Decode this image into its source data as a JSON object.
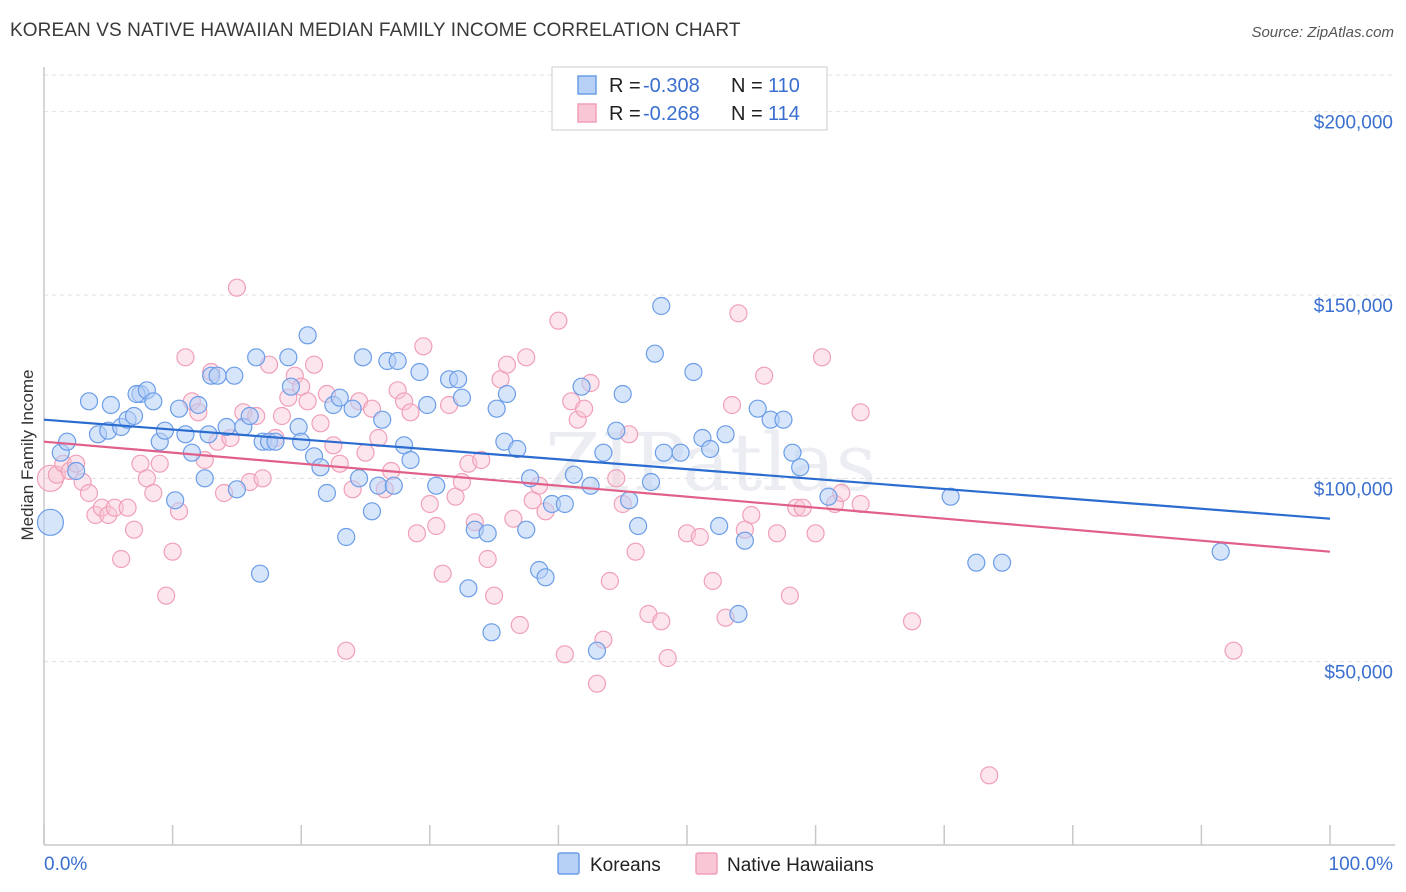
{
  "title": "KOREAN VS NATIVE HAWAIIAN MEDIAN FAMILY INCOME CORRELATION CHART",
  "source": "Source: ZipAtlas.com",
  "watermark": "ZIPatlas",
  "colors": {
    "korean": "#6b9de8",
    "korean_line": "#2a6ccf",
    "hawaiian": "#f0a0b8",
    "hawaiian_line": "#e0608a",
    "axis_text": "#3a6fd0"
  },
  "legend": {
    "rows": [
      {
        "r_label": "R =",
        "r_value": "-0.308",
        "n_label": "N =",
        "n_value": "110"
      },
      {
        "r_label": "R =",
        "r_value": "-0.268",
        "n_label": "N =",
        "n_value": "114"
      }
    ]
  },
  "bottom_legend": [
    "Koreans",
    "Native Hawaiians"
  ],
  "chart_data": {
    "type": "scatter",
    "title": "KOREAN VS NATIVE HAWAIIAN MEDIAN FAMILY INCOME CORRELATION CHART",
    "xlabel": "",
    "ylabel": "Median Family Income",
    "xlim": [
      0,
      100
    ],
    "ylim": [
      0,
      210000
    ],
    "x_tick_labels": [
      "0.0%",
      "100.0%"
    ],
    "y_ticks": [
      50000,
      100000,
      150000,
      200000
    ],
    "y_tick_labels": [
      "$50,000",
      "$100,000",
      "$150,000",
      "$200,000"
    ],
    "grid": "horizontal dashed",
    "legend_position": "top-center",
    "series": [
      {
        "name": "Koreans",
        "trend": {
          "x": [
            0,
            100
          ],
          "y": [
            116000,
            89000
          ]
        },
        "points": [
          [
            0.5,
            88000
          ],
          [
            1.3,
            107000
          ],
          [
            1.8,
            110000
          ],
          [
            2.5,
            102000
          ],
          [
            3.5,
            121000
          ],
          [
            4.2,
            112000
          ],
          [
            5.0,
            113000
          ],
          [
            5.2,
            120000
          ],
          [
            6.0,
            114000
          ],
          [
            6.5,
            116000
          ],
          [
            7.0,
            117000
          ],
          [
            7.5,
            123000
          ],
          [
            7.2,
            123000
          ],
          [
            8.0,
            124000
          ],
          [
            8.5,
            121000
          ],
          [
            9.0,
            110000
          ],
          [
            9.4,
            113000
          ],
          [
            10.2,
            94000
          ],
          [
            10.5,
            119000
          ],
          [
            11.0,
            112000
          ],
          [
            11.5,
            107000
          ],
          [
            12.0,
            120000
          ],
          [
            12.5,
            100000
          ],
          [
            12.8,
            112000
          ],
          [
            13.0,
            128000
          ],
          [
            13.5,
            128000
          ],
          [
            14.2,
            114000
          ],
          [
            14.8,
            128000
          ],
          [
            15.0,
            97000
          ],
          [
            15.5,
            114000
          ],
          [
            16.0,
            117000
          ],
          [
            16.5,
            133000
          ],
          [
            16.8,
            74000
          ],
          [
            17.0,
            110000
          ],
          [
            17.5,
            110000
          ],
          [
            18.0,
            110000
          ],
          [
            19.0,
            133000
          ],
          [
            19.2,
            125000
          ],
          [
            19.8,
            114000
          ],
          [
            20.0,
            110000
          ],
          [
            20.5,
            139000
          ],
          [
            21.0,
            106000
          ],
          [
            21.5,
            103000
          ],
          [
            22.0,
            96000
          ],
          [
            22.5,
            120000
          ],
          [
            23.0,
            122000
          ],
          [
            23.5,
            84000
          ],
          [
            24.0,
            119000
          ],
          [
            24.5,
            100000
          ],
          [
            24.8,
            133000
          ],
          [
            25.5,
            91000
          ],
          [
            26.0,
            98000
          ],
          [
            26.3,
            116000
          ],
          [
            26.7,
            132000
          ],
          [
            27.2,
            98000
          ],
          [
            27.5,
            132000
          ],
          [
            28.0,
            109000
          ],
          [
            28.5,
            105000
          ],
          [
            29.2,
            129000
          ],
          [
            29.8,
            120000
          ],
          [
            30.5,
            98000
          ],
          [
            31.5,
            127000
          ],
          [
            32.2,
            127000
          ],
          [
            32.5,
            122000
          ],
          [
            33.0,
            70000
          ],
          [
            33.5,
            86000
          ],
          [
            34.5,
            85000
          ],
          [
            34.8,
            58000
          ],
          [
            35.2,
            119000
          ],
          [
            35.8,
            110000
          ],
          [
            36.0,
            123000
          ],
          [
            36.8,
            108000
          ],
          [
            37.5,
            86000
          ],
          [
            37.8,
            100000
          ],
          [
            38.5,
            75000
          ],
          [
            39.0,
            73000
          ],
          [
            39.5,
            93000
          ],
          [
            40.5,
            93000
          ],
          [
            41.2,
            101000
          ],
          [
            41.8,
            125000
          ],
          [
            42.5,
            98000
          ],
          [
            43.0,
            53000
          ],
          [
            43.5,
            107000
          ],
          [
            44.5,
            113000
          ],
          [
            45.0,
            123000
          ],
          [
            45.5,
            94000
          ],
          [
            46.2,
            87000
          ],
          [
            47.2,
            99000
          ],
          [
            47.5,
            134000
          ],
          [
            48.0,
            147000
          ],
          [
            48.2,
            107000
          ],
          [
            49.5,
            107000
          ],
          [
            50.5,
            129000
          ],
          [
            51.2,
            111000
          ],
          [
            51.8,
            108000
          ],
          [
            52.5,
            87000
          ],
          [
            53.0,
            112000
          ],
          [
            54.0,
            63000
          ],
          [
            54.5,
            83000
          ],
          [
            55.5,
            119000
          ],
          [
            56.5,
            116000
          ],
          [
            57.5,
            116000
          ],
          [
            58.2,
            107000
          ],
          [
            58.8,
            103000
          ],
          [
            61.0,
            95000
          ],
          [
            70.5,
            95000
          ],
          [
            72.5,
            77000
          ],
          [
            74.5,
            77000
          ],
          [
            91.5,
            80000
          ]
        ]
      },
      {
        "name": "Native Hawaiians",
        "trend": {
          "x": [
            0,
            100
          ],
          "y": [
            110000,
            80000
          ]
        },
        "points": [
          [
            0.5,
            100000
          ],
          [
            1.0,
            101000
          ],
          [
            1.5,
            104000
          ],
          [
            2.0,
            102000
          ],
          [
            2.5,
            104000
          ],
          [
            3.0,
            99000
          ],
          [
            3.5,
            96000
          ],
          [
            4.0,
            90000
          ],
          [
            4.5,
            92000
          ],
          [
            5.0,
            90000
          ],
          [
            5.5,
            92000
          ],
          [
            6.0,
            78000
          ],
          [
            6.5,
            92000
          ],
          [
            7.0,
            86000
          ],
          [
            7.5,
            104000
          ],
          [
            8.0,
            100000
          ],
          [
            8.5,
            96000
          ],
          [
            9.0,
            104000
          ],
          [
            9.5,
            68000
          ],
          [
            10.0,
            80000
          ],
          [
            10.5,
            91000
          ],
          [
            11.0,
            133000
          ],
          [
            11.5,
            121000
          ],
          [
            12.0,
            118000
          ],
          [
            12.5,
            105000
          ],
          [
            13.0,
            129000
          ],
          [
            13.5,
            110000
          ],
          [
            14.0,
            96000
          ],
          [
            14.5,
            111000
          ],
          [
            15.0,
            152000
          ],
          [
            15.5,
            118000
          ],
          [
            16.0,
            99000
          ],
          [
            16.5,
            117000
          ],
          [
            17.0,
            100000
          ],
          [
            17.5,
            131000
          ],
          [
            18.0,
            111000
          ],
          [
            18.5,
            117000
          ],
          [
            19.0,
            122000
          ],
          [
            19.5,
            128000
          ],
          [
            20.0,
            125000
          ],
          [
            20.5,
            121000
          ],
          [
            21.0,
            131000
          ],
          [
            21.5,
            115000
          ],
          [
            22.0,
            123000
          ],
          [
            22.5,
            109000
          ],
          [
            23.0,
            104000
          ],
          [
            23.5,
            53000
          ],
          [
            24.0,
            97000
          ],
          [
            24.5,
            121000
          ],
          [
            25.0,
            107000
          ],
          [
            25.5,
            119000
          ],
          [
            26.0,
            111000
          ],
          [
            26.5,
            97000
          ],
          [
            27.0,
            102000
          ],
          [
            27.5,
            124000
          ],
          [
            28.0,
            121000
          ],
          [
            28.5,
            118000
          ],
          [
            29.0,
            85000
          ],
          [
            29.5,
            136000
          ],
          [
            30.0,
            93000
          ],
          [
            30.5,
            87000
          ],
          [
            31.0,
            74000
          ],
          [
            31.5,
            120000
          ],
          [
            32.0,
            95000
          ],
          [
            32.5,
            99000
          ],
          [
            33.0,
            104000
          ],
          [
            33.5,
            88000
          ],
          [
            34.0,
            105000
          ],
          [
            34.5,
            78000
          ],
          [
            35.0,
            68000
          ],
          [
            35.5,
            127000
          ],
          [
            36.0,
            131000
          ],
          [
            36.5,
            89000
          ],
          [
            37.0,
            60000
          ],
          [
            37.5,
            133000
          ],
          [
            38.0,
            94000
          ],
          [
            38.5,
            98000
          ],
          [
            39.0,
            91000
          ],
          [
            40.0,
            143000
          ],
          [
            40.5,
            52000
          ],
          [
            41.0,
            121000
          ],
          [
            41.5,
            116000
          ],
          [
            42.0,
            119000
          ],
          [
            42.5,
            126000
          ],
          [
            43.0,
            44000
          ],
          [
            43.5,
            56000
          ],
          [
            44.0,
            72000
          ],
          [
            44.5,
            100000
          ],
          [
            45.0,
            93000
          ],
          [
            45.5,
            112000
          ],
          [
            46.0,
            80000
          ],
          [
            47.0,
            63000
          ],
          [
            48.0,
            61000
          ],
          [
            48.5,
            51000
          ],
          [
            50.0,
            85000
          ],
          [
            51.0,
            84000
          ],
          [
            52.0,
            72000
          ],
          [
            53.0,
            62000
          ],
          [
            53.5,
            120000
          ],
          [
            54.0,
            145000
          ],
          [
            54.5,
            86000
          ],
          [
            55.0,
            90000
          ],
          [
            56.0,
            128000
          ],
          [
            57.0,
            85000
          ],
          [
            58.0,
            68000
          ],
          [
            58.5,
            92000
          ],
          [
            59.0,
            92000
          ],
          [
            60.0,
            85000
          ],
          [
            60.5,
            133000
          ],
          [
            61.5,
            93000
          ],
          [
            62.0,
            96000
          ],
          [
            63.5,
            93000
          ],
          [
            63.5,
            118000
          ],
          [
            67.5,
            61000
          ],
          [
            73.5,
            19000
          ],
          [
            92.5,
            53000
          ]
        ]
      }
    ]
  }
}
